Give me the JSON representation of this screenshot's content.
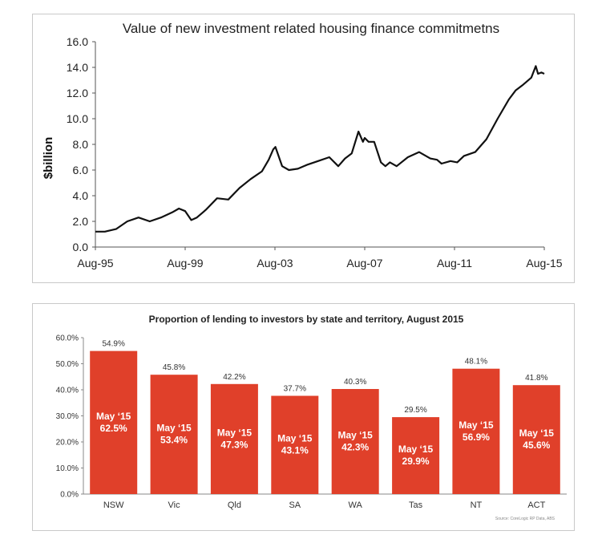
{
  "chart_data": [
    {
      "type": "line",
      "title": "Value of new investment related housing finance commitmetns",
      "ylabel": "$billion",
      "xlabel": "",
      "ylim": [
        0,
        16
      ],
      "yticks": [
        "0.0",
        "2.0",
        "4.0",
        "6.0",
        "8.0",
        "10.0",
        "12.0",
        "14.0",
        "16.0"
      ],
      "xticks": [
        "Aug-95",
        "Aug-99",
        "Aug-03",
        "Aug-07",
        "Aug-11",
        "Aug-15"
      ],
      "grid": false,
      "legend": "none",
      "line_color": "#111111",
      "series": [
        {
          "x": [
            1995.58,
            1996.0,
            1996.5,
            1997.0,
            1997.5,
            1998.0,
            1998.5,
            1999.0,
            1999.3,
            1999.58,
            1999.85,
            2000.1,
            2000.5,
            2001.0,
            2001.5,
            2002.0,
            2002.5,
            2003.0,
            2003.3,
            2003.5,
            2003.6,
            2003.9,
            2004.2,
            2004.6,
            2005.0,
            2005.5,
            2006.0,
            2006.4,
            2006.7,
            2007.0,
            2007.3,
            2007.5,
            2007.58,
            2007.75,
            2008.0,
            2008.3,
            2008.5,
            2008.7,
            2009.0,
            2009.5,
            2010.0,
            2010.5,
            2010.8,
            2011.0,
            2011.4,
            2011.7,
            2012.0,
            2012.5,
            2013.0,
            2013.5,
            2014.0,
            2014.3,
            2014.6,
            2015.0,
            2015.2,
            2015.3,
            2015.45,
            2015.58
          ],
          "y": [
            1.2,
            1.2,
            1.4,
            2.0,
            2.3,
            2.0,
            2.3,
            2.7,
            3.0,
            2.8,
            2.1,
            2.3,
            2.9,
            3.8,
            3.7,
            4.6,
            5.3,
            5.9,
            6.8,
            7.6,
            7.8,
            6.3,
            6.0,
            6.1,
            6.4,
            6.7,
            7.0,
            6.3,
            6.9,
            7.3,
            9.0,
            8.2,
            8.5,
            8.2,
            8.2,
            6.6,
            6.3,
            6.6,
            6.3,
            7.0,
            7.4,
            6.9,
            6.8,
            6.5,
            6.7,
            6.6,
            7.1,
            7.4,
            8.4,
            10.0,
            11.5,
            12.2,
            12.6,
            13.2,
            14.1,
            13.5,
            13.6,
            13.5
          ]
        }
      ]
    },
    {
      "type": "bar",
      "title": "Proportion of lending to investors by state and territory, August 2015",
      "ylim": [
        0,
        60
      ],
      "yticks": [
        "0.0%",
        "10.0%",
        "20.0%",
        "30.0%",
        "40.0%",
        "50.0%",
        "60.0%"
      ],
      "categories": [
        "NSW",
        "Vic",
        "Qld",
        "SA",
        "WA",
        "Tas",
        "NT",
        "ACT"
      ],
      "values": [
        54.9,
        45.8,
        42.2,
        37.7,
        40.3,
        29.5,
        48.1,
        41.8
      ],
      "value_labels": [
        "54.9%",
        "45.8%",
        "42.2%",
        "37.7%",
        "40.3%",
        "29.5%",
        "48.1%",
        "41.8%"
      ],
      "inner_label_prefix": "May ‘15",
      "inner_labels": [
        "62.5%",
        "53.4%",
        "47.3%",
        "43.1%",
        "42.3%",
        "29.9%",
        "56.9%",
        "45.6%"
      ],
      "bar_color": "#e0402a",
      "source": "Source: CoreLogic RP Data, ABS",
      "grid": false,
      "legend": "none"
    }
  ]
}
